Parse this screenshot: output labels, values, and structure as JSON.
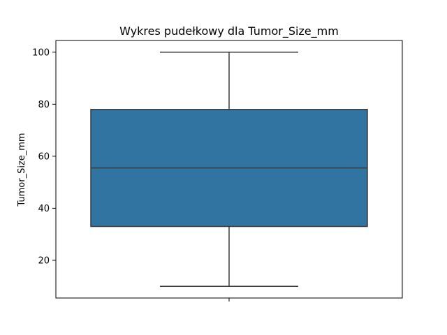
{
  "chart_data": {
    "type": "box",
    "title": "Wykres pudełkowy dla Tumor_Size_mm",
    "xlabel": "",
    "ylabel": "Tumor_Size_mm",
    "ylim": [
      5.5,
      104.5
    ],
    "yticks": [
      20,
      40,
      60,
      80,
      100
    ],
    "grid": false,
    "series": [
      {
        "min": 10,
        "q1": 33,
        "median": 55.5,
        "q3": 78,
        "max": 100
      }
    ],
    "colors": {
      "box_fill": "#3274a1",
      "line": "#3b3b3b",
      "frame": "#000000"
    }
  }
}
